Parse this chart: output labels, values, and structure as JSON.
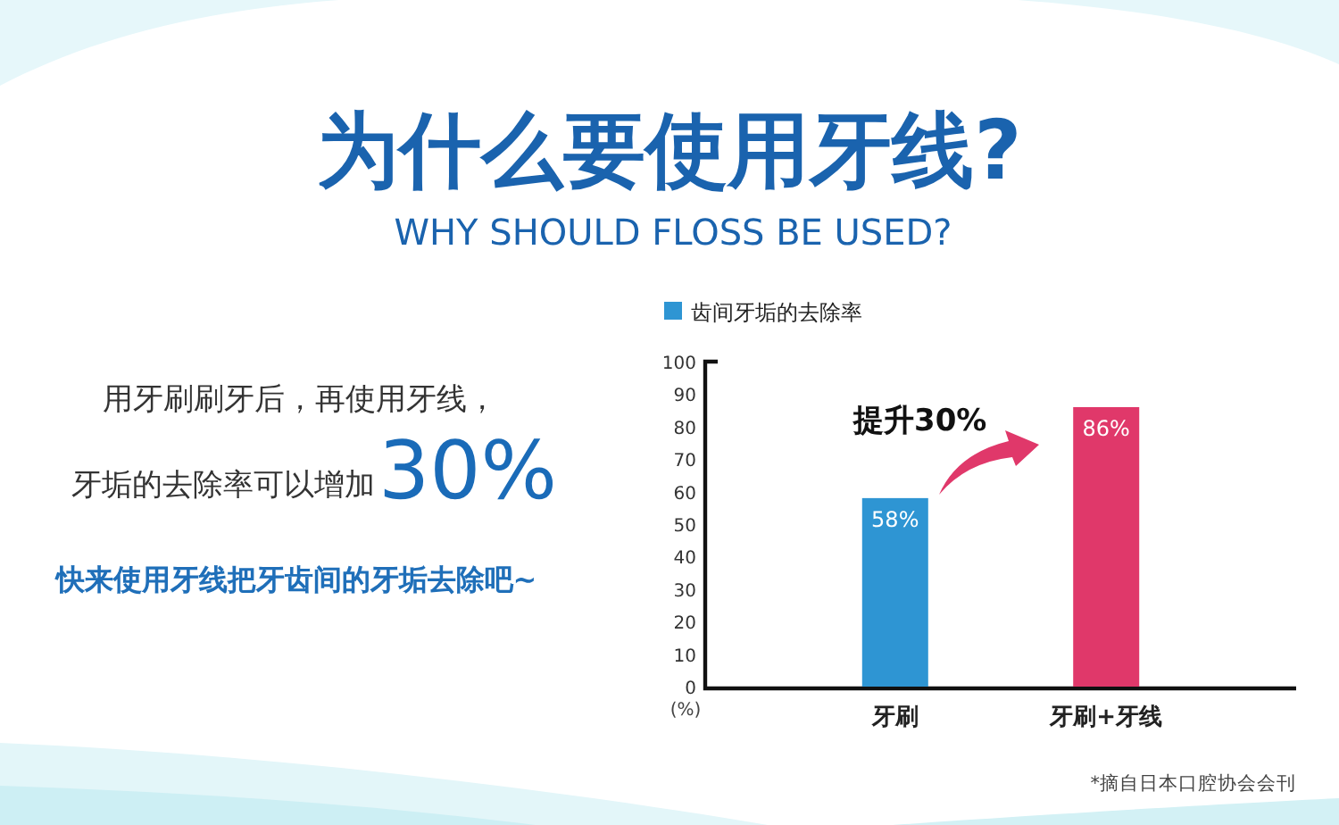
{
  "chart_data": {
    "type": "bar",
    "title": "为什么要使用牙线?",
    "subtitle": "WHY SHOULD FLOSS BE USED?",
    "ylabel": "(%)",
    "categories": [
      "牙刷",
      "牙刷+牙线"
    ],
    "series": [
      {
        "name": "齿间牙垢的去除率",
        "color": "#2e95d3",
        "colors": [
          "#2e95d3",
          "#e0386a"
        ],
        "values": [
          58,
          86
        ],
        "value_labels": [
          "58%",
          "86%"
        ]
      }
    ],
    "ylim": [
      0,
      100
    ],
    "yticks": [
      0,
      10,
      20,
      30,
      40,
      50,
      60,
      70,
      80,
      90,
      100
    ],
    "legend": "top left",
    "annotations": [
      "用牙刷刷牙后，再使用牙线，",
      "牙垢的去除率可以增加",
      "30%",
      "快来使用牙线把牙齿间的牙垢去除吧~",
      "提升30%",
      "*摘自日本口腔协会会刊"
    ]
  }
}
